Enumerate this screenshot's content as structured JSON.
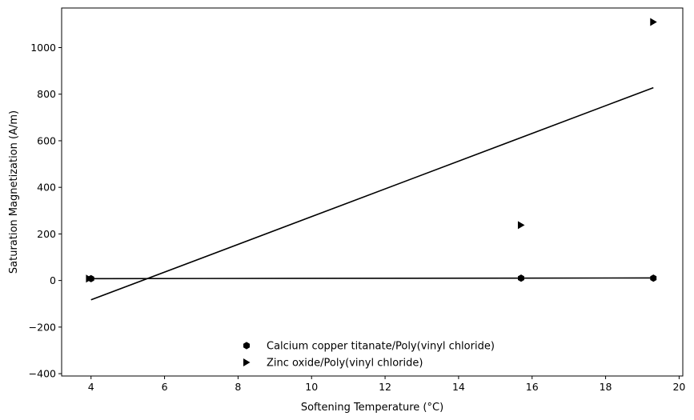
{
  "chart_data": {
    "type": "scatter",
    "xlabel": "Softening Temperature (°C)",
    "ylabel": "Saturation Magnetization (A/m)",
    "xlim": [
      3.2,
      20.1
    ],
    "ylim": [
      -410,
      1170
    ],
    "xticks": [
      4,
      6,
      8,
      10,
      12,
      14,
      16,
      18,
      20
    ],
    "yticks": [
      -400,
      -200,
      0,
      200,
      400,
      600,
      800,
      1000
    ],
    "ytick_labels": [
      "−400",
      "−200",
      "0",
      "200",
      "400",
      "600",
      "800",
      "1000"
    ],
    "grid": false,
    "legend_position": "bottom-center",
    "series": [
      {
        "name": "Calcium copper titanate/Poly(vinyl chloride)",
        "marker": "hexagon",
        "color": "#000000",
        "points": [
          [
            4.0,
            8
          ],
          [
            15.7,
            10
          ],
          [
            19.3,
            10
          ]
        ],
        "fit_line": [
          [
            4.0,
            8
          ],
          [
            19.3,
            11
          ]
        ]
      },
      {
        "name": "Zinc oxide/Poly(vinyl chloride)",
        "marker": "triangle-right",
        "color": "#000000",
        "points": [
          [
            3.95,
            8
          ],
          [
            15.7,
            238
          ],
          [
            19.3,
            1110
          ]
        ],
        "fit_line": [
          [
            4.0,
            -83
          ],
          [
            19.3,
            828
          ]
        ]
      }
    ]
  }
}
